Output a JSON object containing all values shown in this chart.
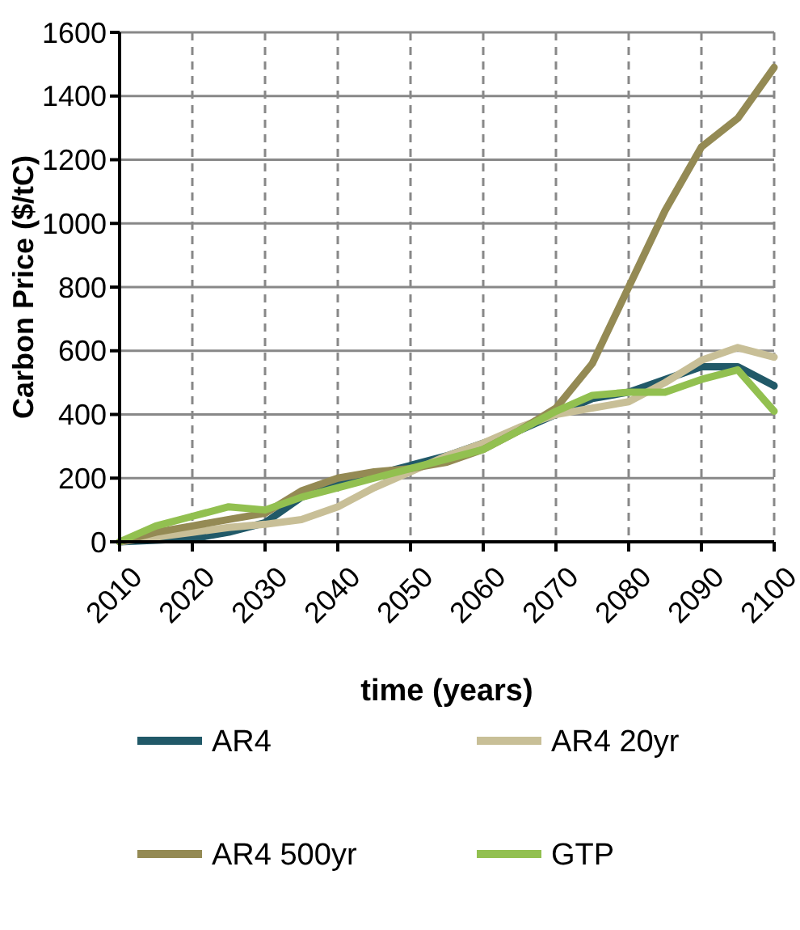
{
  "chart_data": {
    "type": "line",
    "xlabel": "time (years)",
    "ylabel": "Carbon Price ($/tC)",
    "x": [
      2010,
      2015,
      2020,
      2025,
      2030,
      2035,
      2040,
      2045,
      2050,
      2055,
      2060,
      2065,
      2070,
      2075,
      2080,
      2085,
      2090,
      2095,
      2100
    ],
    "xlim": [
      2010,
      2100
    ],
    "xticks": [
      2010,
      2020,
      2030,
      2040,
      2050,
      2060,
      2070,
      2080,
      2090,
      2100
    ],
    "ylim": [
      0,
      1600
    ],
    "yticks": [
      0,
      200,
      400,
      600,
      800,
      1000,
      1200,
      1400,
      1600
    ],
    "grid": true,
    "legend": "bottom",
    "marker": "none",
    "line_style": "solid",
    "series": [
      {
        "name": "AR4",
        "color": "#215968",
        "values": [
          0,
          5,
          10,
          30,
          60,
          140,
          180,
          210,
          240,
          270,
          310,
          350,
          400,
          450,
          470,
          510,
          550,
          550,
          490
        ]
      },
      {
        "name": "AR4 20yr",
        "color": "#c8bf97",
        "values": [
          0,
          15,
          30,
          45,
          55,
          70,
          110,
          170,
          220,
          270,
          310,
          360,
          400,
          420,
          440,
          500,
          570,
          610,
          580
        ]
      },
      {
        "name": "AR4 500yr",
        "color": "#948a54",
        "values": [
          0,
          30,
          50,
          70,
          90,
          160,
          200,
          220,
          230,
          250,
          290,
          350,
          420,
          560,
          800,
          1040,
          1240,
          1330,
          1490
        ]
      },
      {
        "name": "GTP",
        "color": "#92c050",
        "values": [
          0,
          50,
          80,
          110,
          100,
          140,
          170,
          200,
          230,
          260,
          290,
          350,
          410,
          460,
          470,
          470,
          510,
          540,
          410
        ]
      }
    ]
  }
}
